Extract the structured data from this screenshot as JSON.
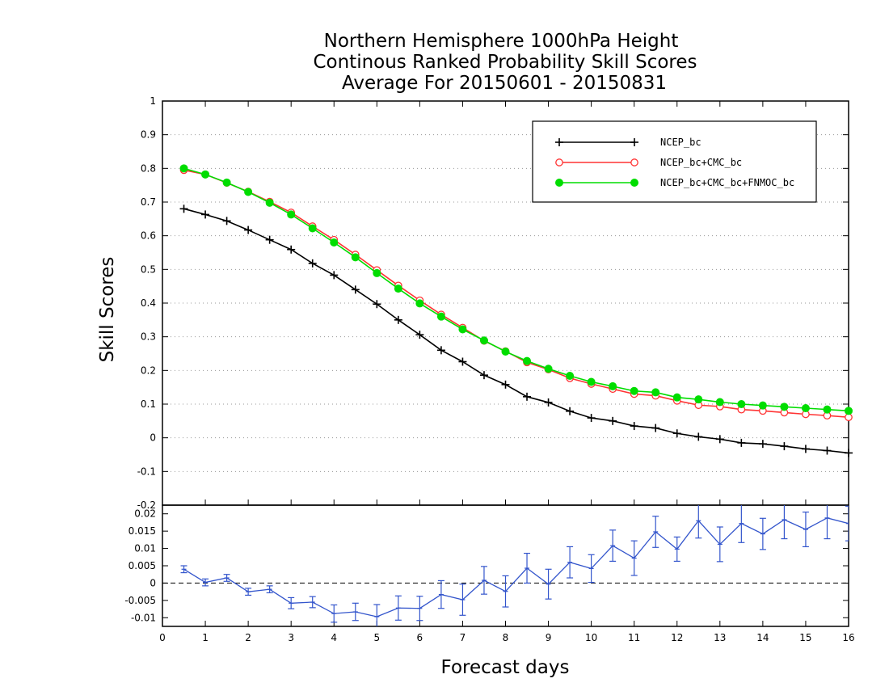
{
  "chart_data": [
    {
      "type": "line",
      "title": [
        "Northern Hemisphere 1000hPa Height",
        "Continous Ranked Probability Skill Scores",
        "Average For 20150601 - 20150831"
      ],
      "xlabel": "Forecast days",
      "ylabel": "Skill Scores",
      "xlim": [
        0,
        16
      ],
      "ylim": [
        -0.2,
        1
      ],
      "xticks": [
        "0",
        "1",
        "2",
        "3",
        "4",
        "5",
        "6",
        "7",
        "8",
        "9",
        "10",
        "11",
        "12",
        "13",
        "14",
        "15",
        "16"
      ],
      "yticks": [
        "-0.2",
        "-0.1",
        "0",
        "0.1",
        "0.2",
        "0.3",
        "0.4",
        "0.5",
        "0.6",
        "0.7",
        "0.8",
        "0.9",
        "1"
      ],
      "grid": true,
      "legend_position": "top-right",
      "x": [
        0.5,
        1,
        1.5,
        2,
        2.5,
        3,
        3.5,
        4,
        4.5,
        5,
        5.5,
        6,
        6.5,
        7,
        7.5,
        8,
        8.5,
        9,
        9.5,
        10,
        10.5,
        11,
        11.5,
        12,
        12.5,
        13,
        13.5,
        14,
        14.5,
        15,
        15.5,
        16
      ],
      "series": [
        {
          "name": "NCEP_bc",
          "color": "#000000",
          "marker": "plus",
          "values": [
            0.68,
            0.663,
            0.644,
            0.617,
            0.588,
            0.559,
            0.518,
            0.483,
            0.44,
            0.397,
            0.35,
            0.306,
            0.26,
            0.226,
            0.186,
            0.158,
            0.122,
            0.105,
            0.079,
            0.059,
            0.05,
            0.035,
            0.029,
            0.013,
            0.003,
            -0.004,
            -0.015,
            -0.018,
            -0.025,
            -0.033,
            -0.038,
            -0.045
          ]
        },
        {
          "name": "NCEP_bc+CMC_bc",
          "color": "#ff3333",
          "marker": "open-circle",
          "values": [
            0.795,
            0.782,
            0.757,
            0.731,
            0.701,
            0.669,
            0.628,
            0.588,
            0.544,
            0.498,
            0.452,
            0.408,
            0.366,
            0.327,
            0.288,
            0.257,
            0.224,
            0.203,
            0.177,
            0.16,
            0.145,
            0.13,
            0.125,
            0.11,
            0.097,
            0.093,
            0.084,
            0.08,
            0.075,
            0.07,
            0.066,
            0.061
          ]
        },
        {
          "name": "NCEP_bc+CMC_bc+FNMOC_bc",
          "color": "#00dd00",
          "marker": "filled-circle",
          "values": [
            0.8,
            0.782,
            0.758,
            0.73,
            0.698,
            0.663,
            0.622,
            0.58,
            0.536,
            0.489,
            0.443,
            0.399,
            0.36,
            0.322,
            0.289,
            0.256,
            0.228,
            0.205,
            0.184,
            0.166,
            0.153,
            0.139,
            0.135,
            0.12,
            0.114,
            0.106,
            0.1,
            0.096,
            0.092,
            0.088,
            0.084,
            0.08
          ]
        }
      ]
    },
    {
      "type": "line",
      "xlim": [
        0,
        16
      ],
      "ylim": [
        -0.0125,
        0.0225
      ],
      "yticks": [
        "-0.01",
        "-0.005",
        "0",
        "0.005",
        "0.01",
        "0.015",
        "0.02"
      ],
      "zero_line": "dashed",
      "series": [
        {
          "color": "#3355cc",
          "marker": "errorbar",
          "x": [
            0.5,
            1,
            1.5,
            2,
            2.5,
            3,
            3.5,
            4,
            4.5,
            5,
            5.5,
            6,
            6.5,
            7,
            7.5,
            8,
            8.5,
            9,
            9.5,
            10,
            10.5,
            11,
            11.5,
            12,
            12.5,
            13,
            13.5,
            14,
            14.5,
            15,
            15.5,
            16
          ],
          "values": [
            0.004,
            0.0002,
            0.0015,
            -0.0025,
            -0.0018,
            -0.0058,
            -0.0055,
            -0.0088,
            -0.0083,
            -0.0097,
            -0.0072,
            -0.0073,
            -0.0033,
            -0.0048,
            0.0008,
            -0.0024,
            0.0043,
            -0.0003,
            0.006,
            0.0042,
            0.0108,
            0.0072,
            0.0148,
            0.0098,
            0.018,
            0.0112,
            0.0172,
            0.0142,
            0.0183,
            0.0155,
            0.0188,
            0.0172
          ],
          "errors": [
            0.001,
            0.001,
            0.001,
            0.001,
            0.001,
            0.0016,
            0.0016,
            0.0025,
            0.0025,
            0.0035,
            0.0035,
            0.0035,
            0.004,
            0.0045,
            0.004,
            0.0045,
            0.0043,
            0.0043,
            0.0045,
            0.004,
            0.0045,
            0.005,
            0.0045,
            0.0035,
            0.005,
            0.005,
            0.0055,
            0.0045,
            0.0055,
            0.005,
            0.006,
            0.005
          ]
        }
      ]
    }
  ]
}
